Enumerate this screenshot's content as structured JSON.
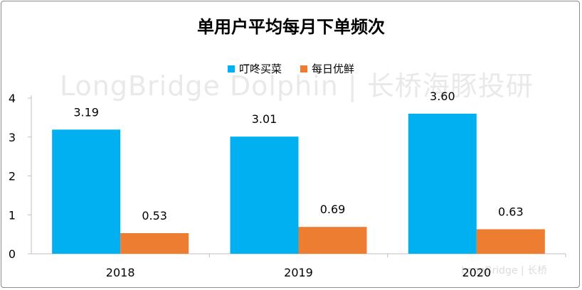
{
  "chart_data": {
    "type": "bar",
    "title": "单用户平均每月下单频次",
    "categories": [
      "2018",
      "2019",
      "2020"
    ],
    "series": [
      {
        "name": "叮咚买菜",
        "color": "#00b0f0",
        "values": [
          3.19,
          3.01,
          3.6
        ],
        "labels": [
          "3.19",
          "3.01",
          "3.60"
        ]
      },
      {
        "name": "每日优鲜",
        "color": "#ed7d31",
        "values": [
          0.53,
          0.69,
          0.63
        ],
        "labels": [
          "0.53",
          "0.69",
          "0.63"
        ]
      }
    ],
    "yticks": [
      "0",
      "1",
      "2",
      "3",
      "4"
    ],
    "ylim": [
      0,
      4
    ],
    "xlabel": "",
    "ylabel": "",
    "legend_position": "top-center"
  },
  "watermark": "LongBridge Dolphin | 长桥海豚投研",
  "watermark_small": "LongBridge | 长桥"
}
